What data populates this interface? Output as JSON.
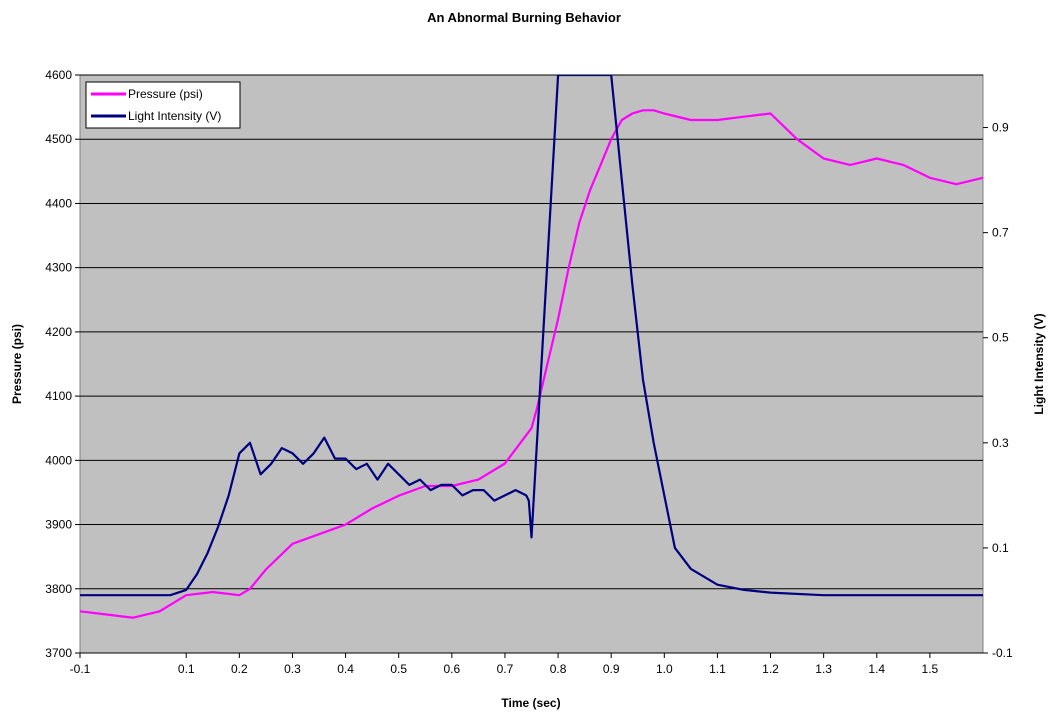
{
  "chart_data": {
    "type": "line",
    "title": "An Abnormal Burning Behavior",
    "xlabel": "Time (sec)",
    "ylabel": "Pressure (psi)",
    "y2label": "Light Intensity (V)",
    "xlim": [
      -0.1,
      1.6
    ],
    "ylim": [
      3700,
      4600
    ],
    "y2lim": [
      -0.1,
      1.0
    ],
    "xticks": [
      "-0.1",
      "0.1",
      "0.2",
      "0.3",
      "0.4",
      "0.5",
      "0.6",
      "0.7",
      "0.8",
      "0.9",
      "1.0",
      "1.1",
      "1.2",
      "1.3",
      "1.4",
      "1.5"
    ],
    "yticks": [
      "3700",
      "3800",
      "3900",
      "4000",
      "4100",
      "4200",
      "4300",
      "4400",
      "4500",
      "4600"
    ],
    "y2ticks": [
      "-0.1",
      "0.1",
      "0.3",
      "0.5",
      "0.7",
      "0.9"
    ],
    "grid": "horizontal",
    "plot_background": "#c0c0c0",
    "legend_position": "top-left",
    "series": [
      {
        "name": "Pressure (psi)",
        "axis": "left",
        "color": "#ff00ff",
        "x": [
          -0.1,
          -0.05,
          0.0,
          0.05,
          0.1,
          0.15,
          0.2,
          0.22,
          0.25,
          0.3,
          0.35,
          0.4,
          0.45,
          0.5,
          0.55,
          0.6,
          0.65,
          0.7,
          0.75,
          0.76,
          0.78,
          0.8,
          0.82,
          0.84,
          0.86,
          0.88,
          0.9,
          0.92,
          0.94,
          0.96,
          0.98,
          1.0,
          1.05,
          1.1,
          1.15,
          1.2,
          1.25,
          1.3,
          1.35,
          1.4,
          1.45,
          1.5,
          1.55,
          1.6
        ],
        "y": [
          3765,
          3760,
          3755,
          3765,
          3790,
          3795,
          3790,
          3800,
          3830,
          3870,
          3885,
          3900,
          3925,
          3945,
          3960,
          3960,
          3970,
          3995,
          4050,
          4080,
          4150,
          4220,
          4300,
          4370,
          4420,
          4460,
          4500,
          4530,
          4540,
          4545,
          4545,
          4540,
          4530,
          4530,
          4535,
          4540,
          4500,
          4470,
          4460,
          4470,
          4460,
          4440,
          4430,
          4440
        ]
      },
      {
        "name": "Light Intensity (V)",
        "axis": "right",
        "color": "#000080",
        "x": [
          -0.1,
          -0.05,
          0.0,
          0.05,
          0.07,
          0.1,
          0.12,
          0.14,
          0.16,
          0.18,
          0.2,
          0.22,
          0.24,
          0.26,
          0.28,
          0.3,
          0.32,
          0.34,
          0.36,
          0.38,
          0.4,
          0.42,
          0.44,
          0.46,
          0.48,
          0.5,
          0.52,
          0.54,
          0.56,
          0.58,
          0.6,
          0.62,
          0.64,
          0.66,
          0.68,
          0.7,
          0.72,
          0.74,
          0.745,
          0.75,
          0.8,
          0.9,
          0.92,
          0.94,
          0.96,
          0.98,
          1.0,
          1.02,
          1.05,
          1.1,
          1.15,
          1.2,
          1.3,
          1.4,
          1.5,
          1.6
        ],
        "y": [
          0.01,
          0.01,
          0.01,
          0.01,
          0.01,
          0.02,
          0.05,
          0.09,
          0.14,
          0.2,
          0.28,
          0.3,
          0.24,
          0.26,
          0.29,
          0.28,
          0.26,
          0.28,
          0.31,
          0.27,
          0.27,
          0.25,
          0.26,
          0.23,
          0.26,
          0.24,
          0.22,
          0.23,
          0.21,
          0.22,
          0.22,
          0.2,
          0.21,
          0.21,
          0.19,
          0.2,
          0.21,
          0.2,
          0.19,
          0.12,
          1.0,
          1.0,
          0.8,
          0.6,
          0.42,
          0.3,
          0.2,
          0.1,
          0.06,
          0.03,
          0.02,
          0.015,
          0.01,
          0.01,
          0.01,
          0.01
        ]
      }
    ]
  }
}
